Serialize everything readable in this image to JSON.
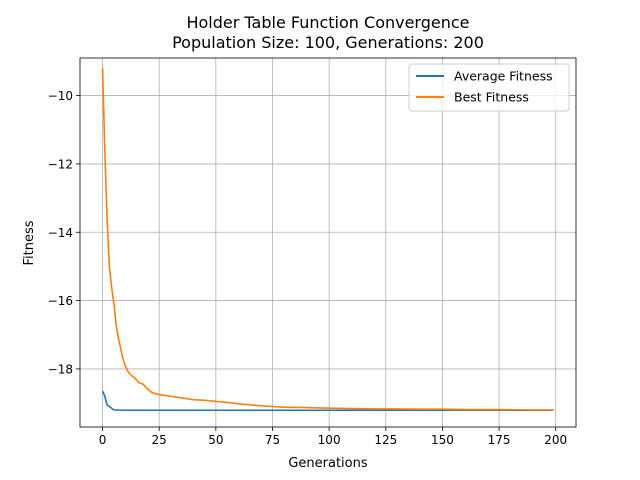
{
  "chart_data": {
    "type": "line",
    "title": "Holder Table Function Convergence",
    "subtitle": "Population Size: 100, Generations: 200",
    "xlabel": "Generations",
    "ylabel": "Fitness",
    "xlim": [
      -9.95,
      208.95
    ],
    "ylim": [
      -19.7,
      -8.9
    ],
    "x_ticks": [
      0,
      25,
      50,
      75,
      100,
      125,
      150,
      175,
      200
    ],
    "y_ticks": [
      -18,
      -16,
      -14,
      -12,
      -10
    ],
    "x_tick_labels": [
      "0",
      "25",
      "50",
      "75",
      "100",
      "125",
      "150",
      "175",
      "200"
    ],
    "y_tick_labels": [
      "−18",
      "−16",
      "−14",
      "−12",
      "−10"
    ],
    "grid": true,
    "legend_position": "top-right",
    "series": [
      {
        "name": "Average Fitness",
        "color": "#1f77b4",
        "points": [
          [
            0,
            -18.65
          ],
          [
            1,
            -18.8
          ],
          [
            2,
            -19.05
          ],
          [
            3,
            -19.1
          ],
          [
            4,
            -19.15
          ],
          [
            5,
            -19.2
          ],
          [
            10,
            -19.21
          ],
          [
            50,
            -19.21
          ],
          [
            100,
            -19.21
          ],
          [
            150,
            -19.21
          ],
          [
            199,
            -19.21
          ]
        ]
      },
      {
        "name": "Best Fitness",
        "color": "#ff7f0e",
        "points": [
          [
            0,
            -9.2
          ],
          [
            1,
            -11.6
          ],
          [
            2,
            -13.6
          ],
          [
            3,
            -15.0
          ],
          [
            4,
            -15.6
          ],
          [
            5,
            -16.1
          ],
          [
            6,
            -16.7
          ],
          [
            7,
            -17.1
          ],
          [
            8,
            -17.4
          ],
          [
            9,
            -17.7
          ],
          [
            10,
            -17.9
          ],
          [
            11,
            -18.05
          ],
          [
            12,
            -18.15
          ],
          [
            14,
            -18.25
          ],
          [
            16,
            -18.4
          ],
          [
            18,
            -18.45
          ],
          [
            20,
            -18.6
          ],
          [
            22,
            -18.7
          ],
          [
            25,
            -18.75
          ],
          [
            30,
            -18.8
          ],
          [
            35,
            -18.85
          ],
          [
            40,
            -18.9
          ],
          [
            45,
            -18.92
          ],
          [
            50,
            -18.95
          ],
          [
            55,
            -18.98
          ],
          [
            60,
            -19.02
          ],
          [
            65,
            -19.05
          ],
          [
            70,
            -19.08
          ],
          [
            75,
            -19.1
          ],
          [
            80,
            -19.12
          ],
          [
            90,
            -19.13
          ],
          [
            100,
            -19.15
          ],
          [
            110,
            -19.16
          ],
          [
            120,
            -19.17
          ],
          [
            130,
            -19.17
          ],
          [
            140,
            -19.18
          ],
          [
            150,
            -19.18
          ],
          [
            160,
            -19.19
          ],
          [
            175,
            -19.19
          ],
          [
            190,
            -19.2
          ],
          [
            199,
            -19.2
          ]
        ]
      }
    ]
  }
}
